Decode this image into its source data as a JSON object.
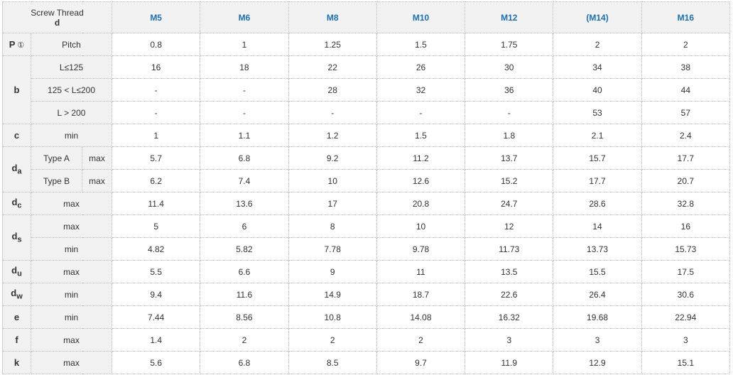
{
  "header": {
    "title_line1": "Screw Thread",
    "title_line2": "d",
    "columns": [
      "M5",
      "M6",
      "M8",
      "M10",
      "M12",
      "(M14)",
      "M16"
    ]
  },
  "colors": {
    "header_text": "#1a6fb5",
    "label_bg": "#f2f2f2"
  },
  "rows": [
    {
      "group": "P",
      "note": "①",
      "span": 1,
      "label": "Pitch",
      "values": [
        "0.8",
        "1",
        "1.25",
        "1.5",
        "1.75",
        "2",
        "2"
      ]
    },
    {
      "group": "b",
      "span": 3,
      "label": "L≤125",
      "values": [
        "16",
        "18",
        "22",
        "26",
        "30",
        "34",
        "38"
      ]
    },
    {
      "label": "125 < L≤200",
      "values": [
        "-",
        "-",
        "28",
        "32",
        "36",
        "40",
        "44"
      ]
    },
    {
      "label": "L > 200",
      "values": [
        "-",
        "-",
        "-",
        "-",
        "-",
        "53",
        "57"
      ]
    },
    {
      "group": "c",
      "span": 1,
      "label": "min",
      "values": [
        "1",
        "1.1",
        "1.2",
        "1.5",
        "1.8",
        "2.1",
        "2.4"
      ]
    },
    {
      "group": "d",
      "sub": "a",
      "span": 2,
      "label": "Type A",
      "label2": "max",
      "values": [
        "5.7",
        "6.8",
        "9.2",
        "11.2",
        "13.7",
        "15.7",
        "17.7"
      ]
    },
    {
      "label": "Type B",
      "label2": "max",
      "values": [
        "6.2",
        "7.4",
        "10",
        "12.6",
        "15.2",
        "17.7",
        "20.7"
      ]
    },
    {
      "group": "d",
      "sub": "c",
      "span": 1,
      "label": "max",
      "values": [
        "11.4",
        "13.6",
        "17",
        "20.8",
        "24.7",
        "28.6",
        "32.8"
      ]
    },
    {
      "group": "d",
      "sub": "s",
      "span": 2,
      "label": "max",
      "values": [
        "5",
        "6",
        "8",
        "10",
        "12",
        "14",
        "16"
      ]
    },
    {
      "label": "min",
      "values": [
        "4.82",
        "5.82",
        "7.78",
        "9.78",
        "11.73",
        "13.73",
        "15.73"
      ]
    },
    {
      "group": "d",
      "sub": "u",
      "span": 1,
      "label": "max",
      "values": [
        "5.5",
        "6.6",
        "9",
        "11",
        "13.5",
        "15.5",
        "17.5"
      ]
    },
    {
      "group": "d",
      "sub": "w",
      "span": 1,
      "label": "min",
      "values": [
        "9.4",
        "11.6",
        "14.9",
        "18.7",
        "22.6",
        "26.4",
        "30.6"
      ]
    },
    {
      "group": "e",
      "span": 1,
      "label": "min",
      "values": [
        "7.44",
        "8.56",
        "10.8",
        "14.08",
        "16.32",
        "19.68",
        "22.94"
      ]
    },
    {
      "group": "f",
      "span": 1,
      "label": "max",
      "values": [
        "1.4",
        "2",
        "2",
        "2",
        "3",
        "3",
        "3"
      ]
    },
    {
      "group": "k",
      "span": 1,
      "label": "max",
      "values": [
        "5.6",
        "6.8",
        "8.5",
        "9.7",
        "11.9",
        "12.9",
        "15.1"
      ]
    }
  ]
}
